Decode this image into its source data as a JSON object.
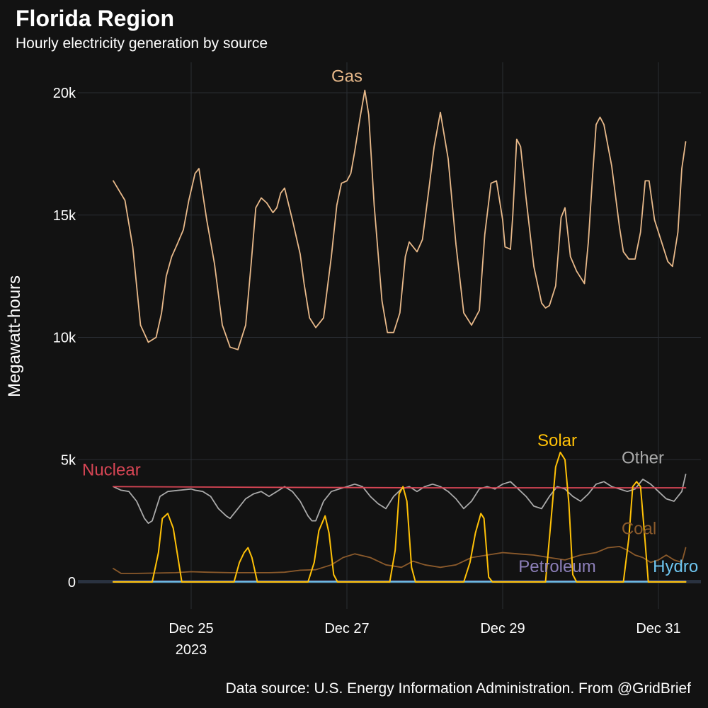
{
  "header": {
    "title": "Florida Region",
    "subtitle": "Hourly electricity generation by source"
  },
  "footer": {
    "caption": "Data source: U.S. Energy Information Administration. From @GridBrief"
  },
  "chart_data": {
    "type": "line",
    "title": "Florida Region",
    "subtitle": "Hourly electricity generation by source",
    "xlabel": "",
    "ylabel": "Megawatt-hours",
    "x_unit": "days since Dec 24, 2023 00:00",
    "xlim": [
      -0.4,
      7.4
    ],
    "ylim": [
      -1100,
      21200
    ],
    "yticks": [
      0,
      5000,
      10000,
      15000,
      20000
    ],
    "ytick_labels": [
      "0",
      "5k",
      "10k",
      "15k",
      "20k"
    ],
    "xticks": [
      1,
      3,
      5,
      7
    ],
    "xtick_labels": [
      "Dec 25\n2023",
      "Dec 27",
      "Dec 29",
      "Dec 31"
    ],
    "grid": true,
    "legend": "direct labels at line ends",
    "series": [
      {
        "name": "Gas",
        "color": "#E8B98A",
        "points": [
          [
            0,
            16400
          ],
          [
            0.15,
            15600
          ],
          [
            0.25,
            13700
          ],
          [
            0.35,
            10500
          ],
          [
            0.45,
            9800
          ],
          [
            0.55,
            10000
          ],
          [
            0.62,
            11000
          ],
          [
            0.68,
            12500
          ],
          [
            0.75,
            13300
          ],
          [
            0.82,
            13800
          ],
          [
            0.9,
            14400
          ],
          [
            0.97,
            15600
          ],
          [
            1.05,
            16700
          ],
          [
            1.1,
            16900
          ],
          [
            1.2,
            14800
          ],
          [
            1.3,
            13000
          ],
          [
            1.4,
            10500
          ],
          [
            1.5,
            9600
          ],
          [
            1.6,
            9500
          ],
          [
            1.7,
            10500
          ],
          [
            1.77,
            13000
          ],
          [
            1.83,
            15300
          ],
          [
            1.9,
            15700
          ],
          [
            1.97,
            15500
          ],
          [
            2.05,
            15100
          ],
          [
            2.1,
            15300
          ],
          [
            2.15,
            15900
          ],
          [
            2.2,
            16100
          ],
          [
            2.3,
            14800
          ],
          [
            2.4,
            13400
          ],
          [
            2.45,
            12200
          ],
          [
            2.52,
            10800
          ],
          [
            2.6,
            10400
          ],
          [
            2.7,
            10800
          ],
          [
            2.8,
            13300
          ],
          [
            2.87,
            15400
          ],
          [
            2.93,
            16300
          ],
          [
            3.0,
            16400
          ],
          [
            3.05,
            16700
          ],
          [
            3.1,
            17600
          ],
          [
            3.17,
            19000
          ],
          [
            3.23,
            20100
          ],
          [
            3.28,
            19100
          ],
          [
            3.35,
            15400
          ],
          [
            3.45,
            11500
          ],
          [
            3.52,
            10200
          ],
          [
            3.6,
            10200
          ],
          [
            3.68,
            11000
          ],
          [
            3.75,
            13300
          ],
          [
            3.8,
            13900
          ],
          [
            3.9,
            13500
          ],
          [
            3.97,
            14000
          ],
          [
            4.05,
            16000
          ],
          [
            4.12,
            17800
          ],
          [
            4.2,
            19200
          ],
          [
            4.3,
            17300
          ],
          [
            4.4,
            13800
          ],
          [
            4.5,
            11000
          ],
          [
            4.6,
            10500
          ],
          [
            4.7,
            11100
          ],
          [
            4.77,
            14200
          ],
          [
            4.85,
            16300
          ],
          [
            4.92,
            16400
          ],
          [
            5.0,
            14800
          ],
          [
            5.03,
            13700
          ],
          [
            5.1,
            13600
          ],
          [
            5.13,
            15000
          ],
          [
            5.18,
            18100
          ],
          [
            5.23,
            17800
          ],
          [
            5.3,
            15700
          ],
          [
            5.4,
            12900
          ],
          [
            5.5,
            11400
          ],
          [
            5.55,
            11200
          ],
          [
            5.6,
            11300
          ],
          [
            5.68,
            12100
          ],
          [
            5.75,
            14900
          ],
          [
            5.8,
            15300
          ],
          [
            5.87,
            13300
          ],
          [
            5.95,
            12700
          ],
          [
            6.05,
            12200
          ],
          [
            6.1,
            13900
          ],
          [
            6.15,
            16400
          ],
          [
            6.2,
            18700
          ],
          [
            6.25,
            19000
          ],
          [
            6.3,
            18700
          ],
          [
            6.4,
            17000
          ],
          [
            6.5,
            14500
          ],
          [
            6.55,
            13500
          ],
          [
            6.62,
            13200
          ],
          [
            6.7,
            13200
          ],
          [
            6.77,
            14300
          ],
          [
            6.83,
            16400
          ],
          [
            6.88,
            16400
          ],
          [
            6.95,
            14800
          ],
          [
            7.05,
            13800
          ],
          [
            7.12,
            13100
          ],
          [
            7.18,
            12900
          ],
          [
            7.25,
            14300
          ],
          [
            7.3,
            16900
          ],
          [
            7.35,
            18000
          ]
        ]
      },
      {
        "name": "Nuclear",
        "color": "#D64554",
        "points": [
          [
            0,
            3900
          ],
          [
            2,
            3870
          ],
          [
            4,
            3850
          ],
          [
            7.35,
            3850
          ]
        ]
      },
      {
        "name": "Other",
        "color": "#AAAAAA",
        "points": [
          [
            0,
            3900
          ],
          [
            0.1,
            3750
          ],
          [
            0.2,
            3700
          ],
          [
            0.3,
            3300
          ],
          [
            0.4,
            2600
          ],
          [
            0.45,
            2400
          ],
          [
            0.5,
            2500
          ],
          [
            0.6,
            3500
          ],
          [
            0.7,
            3700
          ],
          [
            0.85,
            3750
          ],
          [
            1.0,
            3800
          ],
          [
            1.05,
            3750
          ],
          [
            1.15,
            3700
          ],
          [
            1.25,
            3500
          ],
          [
            1.35,
            3000
          ],
          [
            1.45,
            2700
          ],
          [
            1.5,
            2600
          ],
          [
            1.6,
            3000
          ],
          [
            1.7,
            3400
          ],
          [
            1.8,
            3600
          ],
          [
            1.9,
            3700
          ],
          [
            2.0,
            3500
          ],
          [
            2.1,
            3700
          ],
          [
            2.2,
            3900
          ],
          [
            2.3,
            3700
          ],
          [
            2.4,
            3300
          ],
          [
            2.5,
            2700
          ],
          [
            2.55,
            2500
          ],
          [
            2.6,
            2500
          ],
          [
            2.7,
            3300
          ],
          [
            2.8,
            3700
          ],
          [
            2.9,
            3800
          ],
          [
            3.0,
            3900
          ],
          [
            3.1,
            4000
          ],
          [
            3.2,
            3900
          ],
          [
            3.3,
            3500
          ],
          [
            3.4,
            3200
          ],
          [
            3.5,
            3000
          ],
          [
            3.6,
            3500
          ],
          [
            3.7,
            3800
          ],
          [
            3.8,
            3900
          ],
          [
            3.9,
            3700
          ],
          [
            4.0,
            3900
          ],
          [
            4.1,
            4000
          ],
          [
            4.2,
            3900
          ],
          [
            4.3,
            3700
          ],
          [
            4.4,
            3400
          ],
          [
            4.5,
            3000
          ],
          [
            4.6,
            3300
          ],
          [
            4.7,
            3800
          ],
          [
            4.8,
            3900
          ],
          [
            4.9,
            3800
          ],
          [
            5.0,
            4000
          ],
          [
            5.1,
            4100
          ],
          [
            5.2,
            3800
          ],
          [
            5.3,
            3500
          ],
          [
            5.4,
            3100
          ],
          [
            5.5,
            3000
          ],
          [
            5.6,
            3500
          ],
          [
            5.7,
            3900
          ],
          [
            5.8,
            3800
          ],
          [
            5.9,
            3500
          ],
          [
            6.0,
            3300
          ],
          [
            6.1,
            3600
          ],
          [
            6.2,
            4000
          ],
          [
            6.3,
            4100
          ],
          [
            6.4,
            3900
          ],
          [
            6.5,
            3800
          ],
          [
            6.6,
            3700
          ],
          [
            6.7,
            3800
          ],
          [
            6.8,
            4200
          ],
          [
            6.9,
            4000
          ],
          [
            7.0,
            3700
          ],
          [
            7.1,
            3400
          ],
          [
            7.2,
            3300
          ],
          [
            7.3,
            3700
          ],
          [
            7.35,
            4400
          ]
        ]
      },
      {
        "name": "Solar",
        "color": "#FFC107",
        "points": [
          [
            0,
            0
          ],
          [
            0.5,
            0
          ],
          [
            0.58,
            1200
          ],
          [
            0.63,
            2600
          ],
          [
            0.7,
            2800
          ],
          [
            0.77,
            2200
          ],
          [
            0.82,
            1200
          ],
          [
            0.88,
            0
          ],
          [
            1.55,
            0
          ],
          [
            1.62,
            800
          ],
          [
            1.68,
            1200
          ],
          [
            1.73,
            1400
          ],
          [
            1.78,
            1000
          ],
          [
            1.85,
            0
          ],
          [
            2.5,
            0
          ],
          [
            2.58,
            800
          ],
          [
            2.64,
            2100
          ],
          [
            2.72,
            2700
          ],
          [
            2.77,
            2000
          ],
          [
            2.83,
            300
          ],
          [
            2.88,
            0
          ],
          [
            3.55,
            0
          ],
          [
            3.62,
            1300
          ],
          [
            3.67,
            3600
          ],
          [
            3.72,
            3900
          ],
          [
            3.77,
            3300
          ],
          [
            3.83,
            600
          ],
          [
            3.88,
            0
          ],
          [
            4.5,
            0
          ],
          [
            4.58,
            800
          ],
          [
            4.65,
            2000
          ],
          [
            4.72,
            2800
          ],
          [
            4.76,
            2600
          ],
          [
            4.82,
            200
          ],
          [
            4.87,
            0
          ],
          [
            5.55,
            0
          ],
          [
            5.62,
            2500
          ],
          [
            5.68,
            4700
          ],
          [
            5.74,
            5300
          ],
          [
            5.8,
            5000
          ],
          [
            5.85,
            3200
          ],
          [
            5.9,
            300
          ],
          [
            5.95,
            0
          ],
          [
            6.55,
            0
          ],
          [
            6.62,
            1800
          ],
          [
            6.67,
            3900
          ],
          [
            6.72,
            4100
          ],
          [
            6.77,
            3900
          ],
          [
            6.82,
            2000
          ],
          [
            6.87,
            0
          ],
          [
            7.35,
            0
          ]
        ]
      },
      {
        "name": "Coal",
        "color": "#8B5A2B",
        "points": [
          [
            0,
            550
          ],
          [
            0.1,
            350
          ],
          [
            0.3,
            350
          ],
          [
            0.8,
            380
          ],
          [
            1.0,
            420
          ],
          [
            1.2,
            400
          ],
          [
            1.5,
            380
          ],
          [
            2.0,
            380
          ],
          [
            2.2,
            400
          ],
          [
            2.4,
            480
          ],
          [
            2.6,
            500
          ],
          [
            2.8,
            700
          ],
          [
            2.95,
            1000
          ],
          [
            3.1,
            1150
          ],
          [
            3.3,
            1000
          ],
          [
            3.5,
            700
          ],
          [
            3.7,
            600
          ],
          [
            3.85,
            850
          ],
          [
            4.0,
            700
          ],
          [
            4.2,
            600
          ],
          [
            4.4,
            700
          ],
          [
            4.6,
            1000
          ],
          [
            4.8,
            1100
          ],
          [
            5.0,
            1200
          ],
          [
            5.2,
            1150
          ],
          [
            5.4,
            1100
          ],
          [
            5.6,
            1000
          ],
          [
            5.8,
            900
          ],
          [
            6.0,
            1100
          ],
          [
            6.2,
            1200
          ],
          [
            6.35,
            1400
          ],
          [
            6.5,
            1450
          ],
          [
            6.6,
            1300
          ],
          [
            6.7,
            1100
          ],
          [
            6.8,
            1000
          ],
          [
            6.9,
            800
          ],
          [
            7.0,
            900
          ],
          [
            7.1,
            1100
          ],
          [
            7.2,
            900
          ],
          [
            7.3,
            800
          ],
          [
            7.35,
            1400
          ]
        ]
      },
      {
        "name": "Petroleum",
        "color": "#8C7FB8",
        "points": [
          [
            0,
            20
          ],
          [
            7.35,
            20
          ]
        ]
      },
      {
        "name": "Hydro",
        "color": "#6EC6F0",
        "points": [
          [
            0,
            5
          ],
          [
            7.35,
            5
          ]
        ]
      }
    ],
    "labels": [
      {
        "text": "Gas",
        "x": 3.0,
        "y": 20450,
        "color": "#E8B98A"
      },
      {
        "text": "Nuclear",
        "x": -0.4,
        "y": 4350,
        "color": "#D64554"
      },
      {
        "text": "Solar",
        "x": 5.7,
        "y": 5550,
        "color": "#FFC107"
      },
      {
        "text": "Other",
        "x": 6.8,
        "y": 4850,
        "color": "#AAAAAA"
      },
      {
        "text": "Coal",
        "x": 6.75,
        "y": 1950,
        "color": "#8B5A2B"
      },
      {
        "text": "Petroleum",
        "x": 5.7,
        "y": 400,
        "color": "#8C7FB8"
      },
      {
        "text": "Hydro",
        "x": 7.22,
        "y": 400,
        "color": "#6EC6F0"
      }
    ]
  }
}
